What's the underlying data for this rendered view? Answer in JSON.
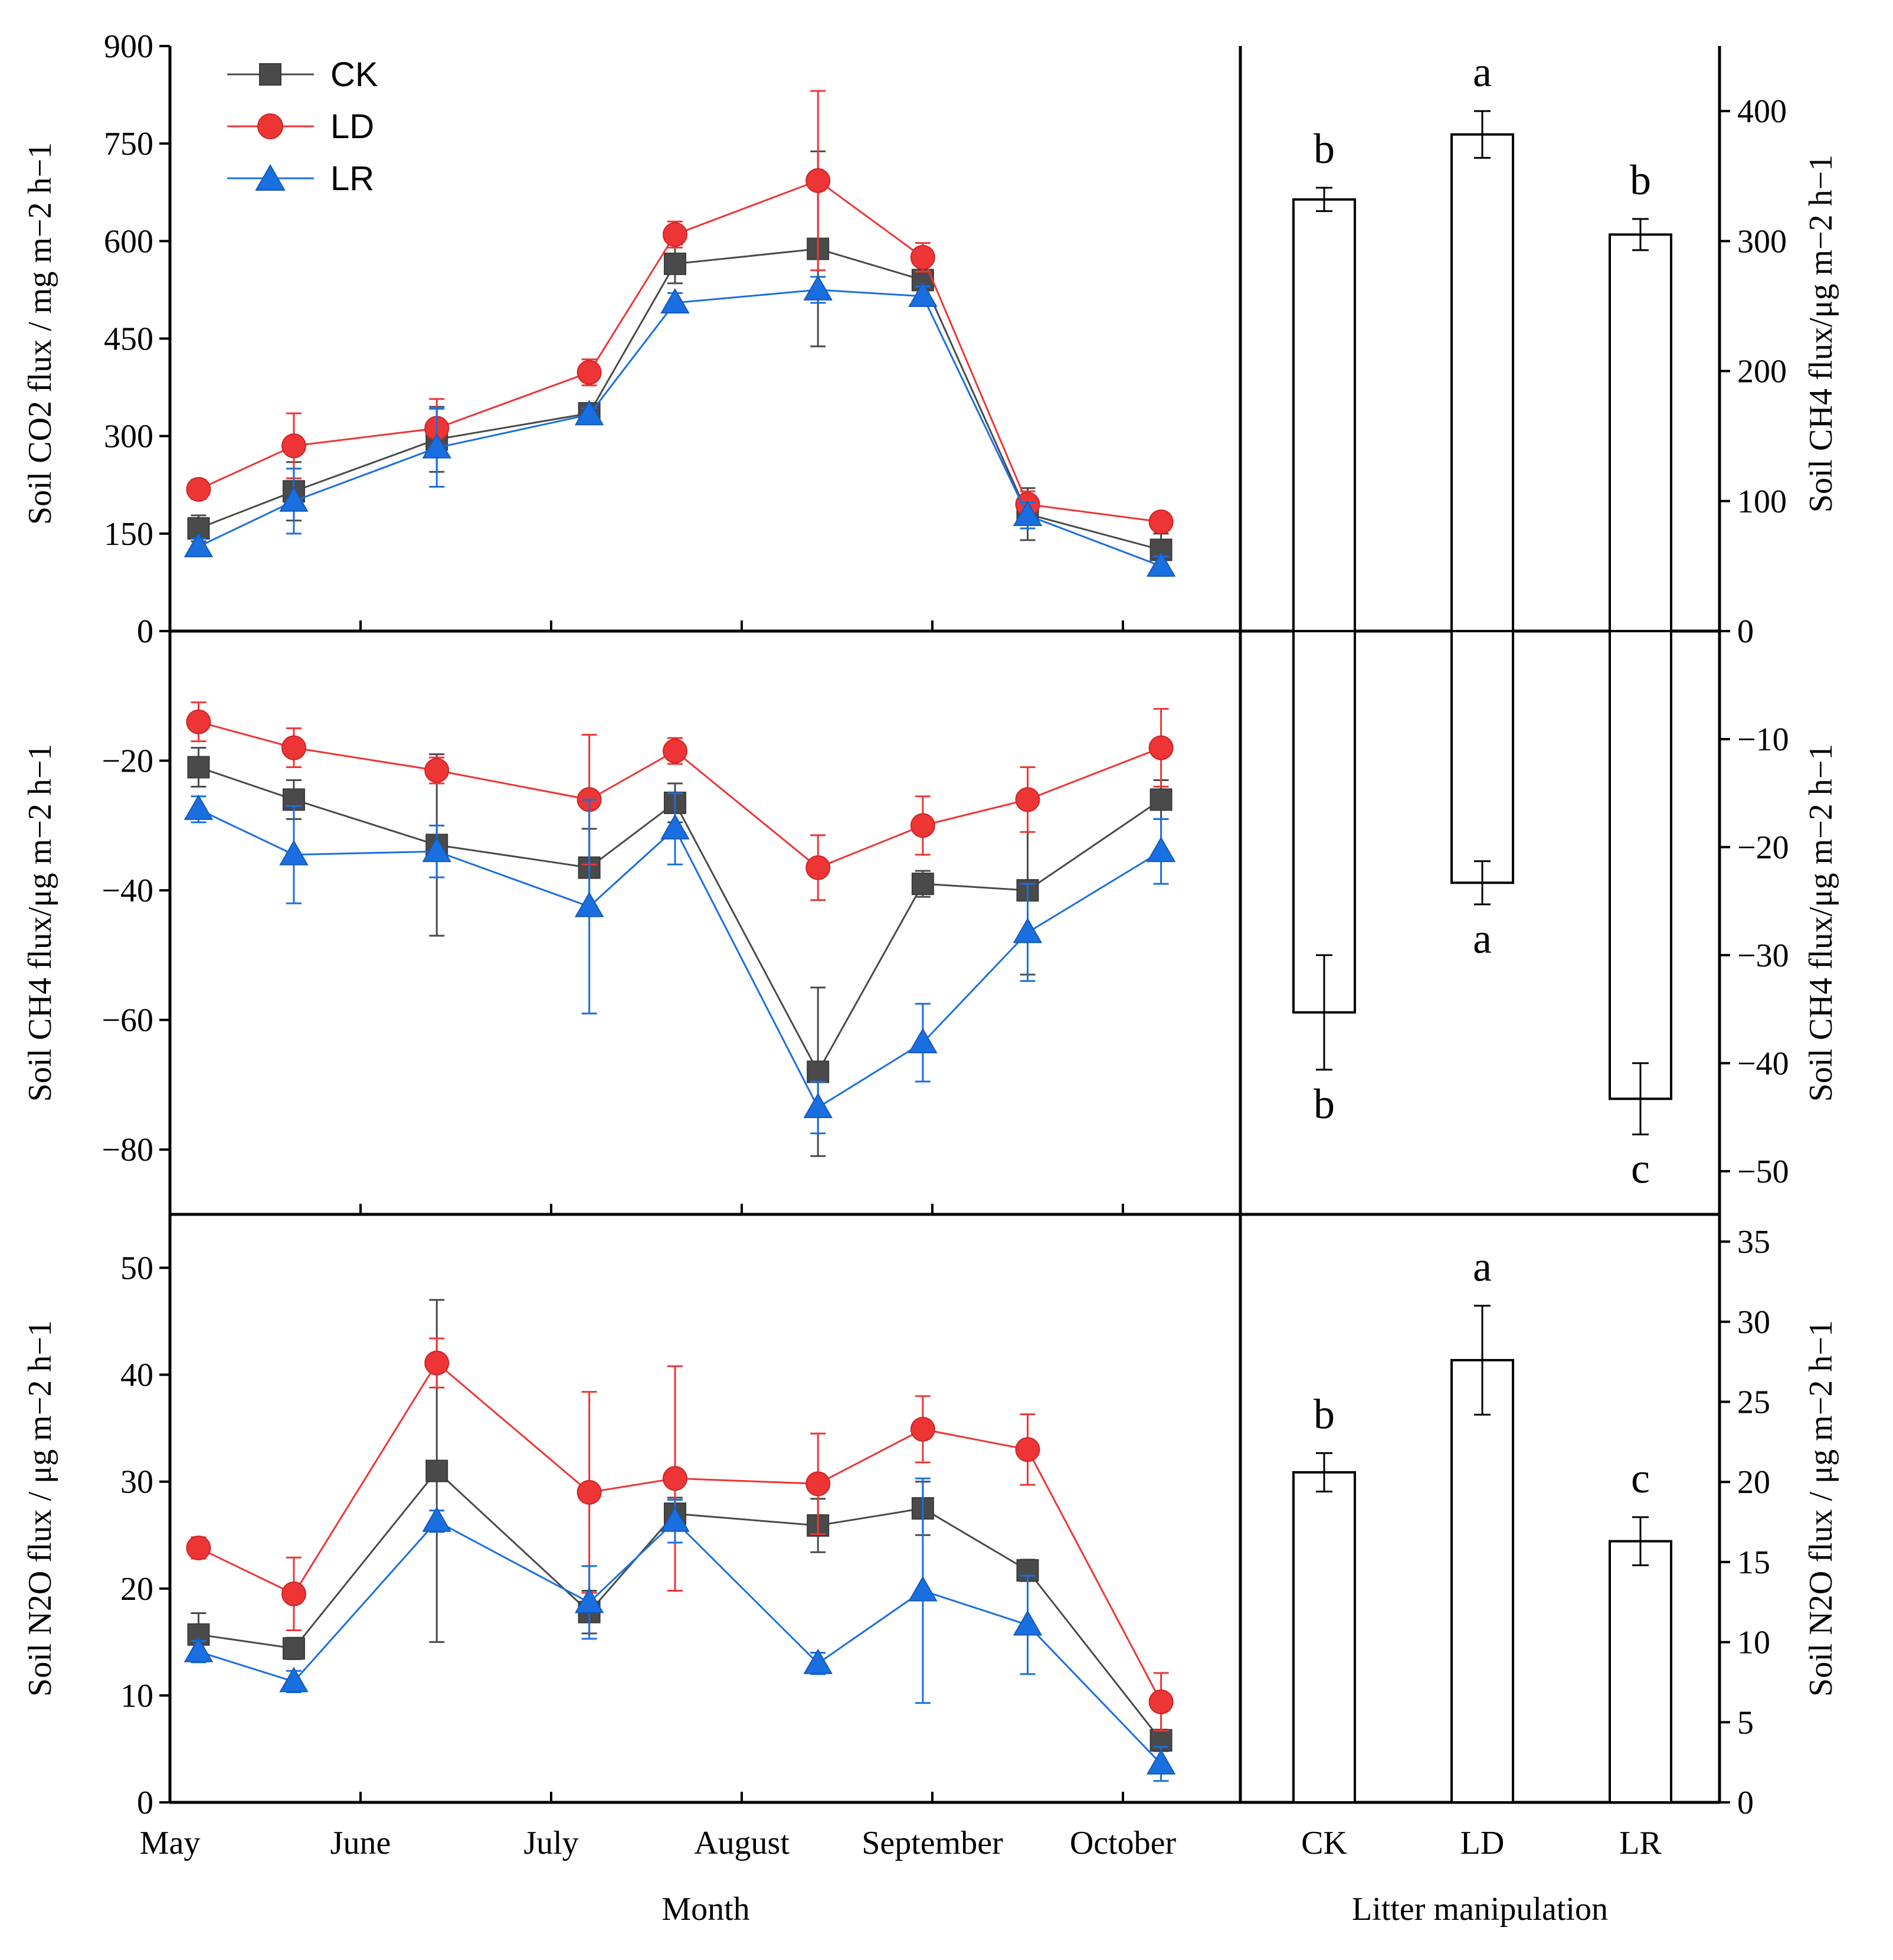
{
  "chart_data": [
    {
      "type": "line",
      "panel": "co2-monthly",
      "ylabel": "Soil CO2 flux / mg m−2 h−1",
      "ylim": [
        0,
        900
      ],
      "yticks": [
        0,
        150,
        300,
        450,
        600,
        750,
        900
      ],
      "x": [
        0.15,
        0.65,
        1.4,
        2.2,
        2.65,
        3.4,
        3.95,
        4.5,
        5.2
      ],
      "series": [
        {
          "name": "CK",
          "values": [
            158,
            215,
            295,
            335,
            565,
            588,
            540,
            180,
            125
          ],
          "errors": [
            20,
            45,
            50,
            15,
            30,
            150,
            15,
            40,
            25
          ]
        },
        {
          "name": "LD",
          "values": [
            218,
            285,
            312,
            398,
            610,
            693,
            575,
            195,
            168
          ],
          "errors": [
            15,
            50,
            45,
            20,
            20,
            138,
            22,
            20,
            12
          ]
        },
        {
          "name": "LR",
          "values": [
            130,
            200,
            282,
            333,
            505,
            525,
            515,
            178,
            100
          ],
          "errors": [
            12,
            50,
            60,
            10,
            15,
            20,
            15,
            20,
            15
          ]
        }
      ]
    },
    {
      "type": "line",
      "panel": "ch4-monthly",
      "ylabel": "Soil CH4 flux/μg m−2 h−1",
      "ylim": [
        -90,
        0
      ],
      "yticks": [
        -20,
        -40,
        -60,
        -80
      ],
      "x": [
        0.15,
        0.65,
        1.4,
        2.2,
        2.65,
        3.4,
        3.95,
        4.5,
        5.2
      ],
      "series": [
        {
          "name": "CK",
          "values": [
            -21,
            -26,
            -33,
            -36.5,
            -26.5,
            -68,
            -39,
            -40,
            -26
          ],
          "errors": [
            3,
            3,
            14,
            6,
            3,
            13,
            2,
            13,
            3
          ]
        },
        {
          "name": "LD",
          "values": [
            -14,
            -18,
            -21.5,
            -26,
            -18.5,
            -36.5,
            -30,
            -26,
            -18
          ],
          "errors": [
            3,
            3,
            2,
            10,
            2,
            5,
            4.5,
            5,
            6
          ]
        },
        {
          "name": "LR",
          "values": [
            -27.5,
            -34.5,
            -34,
            -42.5,
            -30.5,
            -73.5,
            -63.5,
            -46.5,
            -34
          ],
          "errors": [
            2,
            7.5,
            4,
            16.5,
            5.5,
            4,
            6,
            7.5,
            5
          ]
        }
      ]
    },
    {
      "type": "line",
      "panel": "n2o-monthly",
      "xlabel": "Month",
      "ylabel": "Soil N2O flux / μg m−2 h−1",
      "ylim": [
        0,
        55
      ],
      "yticks": [
        0,
        10,
        20,
        30,
        40,
        50
      ],
      "x": [
        0.15,
        0.65,
        1.4,
        2.2,
        2.65,
        3.4,
        3.95,
        4.5,
        5.2
      ],
      "series": [
        {
          "name": "CK",
          "values": [
            15.7,
            14.4,
            31,
            17.8,
            27,
            25.9,
            27.5,
            21.7,
            5.8
          ],
          "errors": [
            2,
            1,
            16,
            2,
            1.5,
            2.5,
            2.5,
            1,
            1
          ]
        },
        {
          "name": "LD",
          "values": [
            23.8,
            19.5,
            41.1,
            29,
            30.3,
            29.8,
            34.9,
            33,
            9.4
          ],
          "errors": [
            1,
            3.4,
            2.3,
            9.4,
            10.5,
            4.7,
            3.1,
            3.3,
            2.7
          ]
        },
        {
          "name": "LR",
          "values": [
            14.1,
            11.3,
            26.3,
            18.7,
            26.3,
            13,
            19.8,
            16.6,
            3.6
          ],
          "errors": [
            1,
            1,
            1,
            3.4,
            2,
            1,
            10.5,
            4.6,
            1.6
          ]
        }
      ]
    },
    {
      "type": "bar",
      "panel": "co2-treatment",
      "ylabel": "Soil CH4 flux/μg m−2 h−1",
      "ylim": [
        0,
        450
      ],
      "yticks": [
        0,
        100,
        200,
        300,
        400
      ],
      "categories": [
        "CK",
        "LD",
        "LR"
      ],
      "values": [
        332,
        382,
        305
      ],
      "errors": [
        9,
        18,
        12
      ],
      "letters": [
        "b",
        "a",
        "b"
      ]
    },
    {
      "type": "bar",
      "panel": "ch4-treatment",
      "ylabel": "Soil CH4 flux/μg m−2 h−1",
      "ylim": [
        -54,
        0
      ],
      "yticks": [
        -10,
        -20,
        -30,
        -40,
        -50
      ],
      "categories": [
        "CK",
        "LD",
        "LR"
      ],
      "values": [
        -35.3,
        -23.3,
        -43.3
      ],
      "errors": [
        5.3,
        2,
        3.3
      ],
      "letters": [
        "b",
        "a",
        "c"
      ]
    },
    {
      "type": "bar",
      "panel": "n2o-treatment",
      "xlabel": "Litter manipulation",
      "ylabel": "Soil N2O flux / μg m−2 h−1",
      "ylim": [
        0,
        36.7
      ],
      "yticks": [
        0,
        5,
        10,
        15,
        20,
        25,
        30,
        35
      ],
      "categories": [
        "CK",
        "LD",
        "LR"
      ],
      "values": [
        20.6,
        27.6,
        16.3
      ],
      "errors": [
        1.2,
        3.4,
        1.5
      ],
      "letters": [
        "b",
        "a",
        "c"
      ]
    }
  ],
  "x_month_ticks": [
    "May",
    "June",
    "July",
    "August",
    "September",
    "October"
  ],
  "legend": [
    "CK",
    "LD",
    "LR"
  ],
  "colors": {
    "CK": "#4a4a4a",
    "LD": "#ee3535",
    "LR": "#1a6fe0"
  }
}
